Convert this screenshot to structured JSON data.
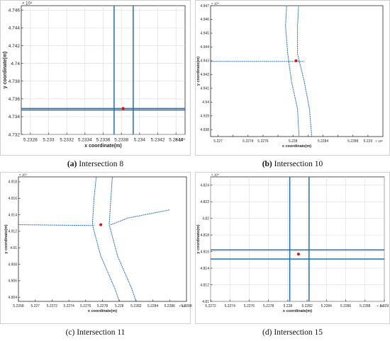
{
  "captions": [
    {
      "label": "(a)",
      "text": " Intersection 8"
    },
    {
      "label": "(b)",
      "text": " Intersection 10"
    },
    {
      "label": "(c)",
      "text": " Intersection 11"
    },
    {
      "label": "(d)",
      "text": " Intersection 15"
    }
  ],
  "colors": {
    "road": "#1f6fb4",
    "road_light": "#4a90d0",
    "intersection": "#e01010"
  },
  "chart_data": [
    {
      "type": "scatter",
      "title": "",
      "xlabel": "x coordinate(m)",
      "ylabel": "y coordinate(m)",
      "x_exponent": "× 10⁵",
      "y_exponent": "× 10⁴",
      "xlim": [
        5.2327,
        5.2345
      ],
      "ylim": [
        4.732,
        4.7465
      ],
      "xticks": [
        5.2328,
        5.233,
        5.2332,
        5.2334,
        5.2336,
        5.2338,
        5.234,
        5.2342,
        5.2344
      ],
      "yticks": [
        4.732,
        4.734,
        4.736,
        4.738,
        4.74,
        4.742,
        4.744,
        4.746
      ],
      "xtick_labels": [
        "5.2328",
        "5.233",
        "5.2332",
        "5.2334",
        "5.2336",
        "5.2338",
        "5.234",
        "5.2342",
        "5.2344"
      ],
      "ytick_labels": [
        "4.732",
        "4.734",
        "4.736",
        "4.738",
        "4.74",
        "4.742",
        "4.744",
        "4.746"
      ],
      "grid": true,
      "roads": [
        [
          [
            5.2327,
            4.73475
          ],
          [
            5.2345,
            4.73475
          ]
        ],
        [
          [
            5.2327,
            4.73492
          ],
          [
            5.2345,
            4.73492
          ]
        ],
        [
          [
            5.23372,
            4.732
          ],
          [
            5.23372,
            4.7465
          ]
        ],
        [
          [
            5.23393,
            4.732
          ],
          [
            5.23393,
            4.7465
          ]
        ]
      ],
      "intersection": [
        5.23382,
        4.73493
      ]
    },
    {
      "type": "scatter",
      "title": "",
      "xlabel": "x coordinate(m)",
      "ylabel": "y coordinate(m)",
      "x_exponent": "× 10⁵",
      "y_exponent": "× 10⁴",
      "xlim": [
        5.2269,
        5.2292
      ],
      "ylim": [
        4.9375,
        4.947
      ],
      "xticks": [
        5.227,
        5.2272,
        5.2274,
        5.2276,
        5.2278,
        5.228,
        5.2282,
        5.2284,
        5.2286,
        5.2288,
        5.229
      ],
      "yticks": [
        4.938,
        4.939,
        4.94,
        4.941,
        4.942,
        4.943,
        4.944,
        4.945,
        4.946,
        4.947
      ],
      "xtick_labels": [
        "5.227",
        "",
        "5.2274",
        "5.2276",
        "",
        "5.228",
        "",
        "5.2284",
        "",
        "5.2288",
        "5.229"
      ],
      "ytick_labels": [
        "4.938",
        "4.939",
        "4.94",
        "4.941",
        "4.942",
        "4.943",
        "4.944",
        "4.945",
        "4.946",
        "4.947"
      ],
      "grid": false,
      "roads": [
        [
          [
            5.2269,
            4.94295
          ],
          [
            5.22815,
            4.94295
          ]
        ],
        [
          [
            5.22792,
            4.9475
          ],
          [
            5.2279,
            4.9455
          ],
          [
            5.22793,
            4.9435
          ],
          [
            5.22798,
            4.9415
          ],
          [
            5.22806,
            4.9395
          ],
          [
            5.22808,
            4.9375
          ]
        ],
        [
          [
            5.22808,
            4.9475
          ],
          [
            5.22806,
            4.9455
          ],
          [
            5.22806,
            4.9435
          ],
          [
            5.22815,
            4.9415
          ],
          [
            5.22822,
            4.9395
          ],
          [
            5.22825,
            4.9375
          ]
        ]
      ],
      "intersection": [
        5.22804,
        4.943
      ]
    },
    {
      "type": "scatter",
      "title": "",
      "xlabel": "x coordinate(m)",
      "ylabel": "y coordinate(m)",
      "x_exponent": "× 10⁵",
      "y_exponent": "× 10⁴",
      "xlim": [
        5.2268,
        5.2288
      ],
      "ylim": [
        4.9035,
        4.9186
      ],
      "xticks": [
        5.2268,
        5.227,
        5.2272,
        5.2274,
        5.2276,
        5.2278,
        5.228,
        5.2282,
        5.2284,
        5.2286,
        5.2288
      ],
      "yticks": [
        4.904,
        4.906,
        4.908,
        4.91,
        4.912,
        4.914,
        4.916,
        4.918
      ],
      "xtick_labels": [
        "5.2268",
        "5.227",
        "5.2272",
        "5.2274",
        "5.2276",
        "5.2278",
        "5.228",
        "5.2282",
        "5.2284",
        "5.2286",
        "5.2288"
      ],
      "ytick_labels": [
        "4.904",
        "4.906",
        "4.908",
        "4.91",
        "4.912",
        "4.914",
        "4.916",
        "4.918"
      ],
      "grid": false,
      "roads": [
        [
          [
            5.2268,
            4.9128
          ],
          [
            5.2277,
            4.9127
          ]
        ],
        [
          [
            5.22773,
            4.919
          ],
          [
            5.2277,
            4.916
          ],
          [
            5.22768,
            4.9128
          ],
          [
            5.22778,
            4.909
          ],
          [
            5.22795,
            4.905
          ],
          [
            5.228,
            4.9035
          ]
        ],
        [
          [
            5.22792,
            4.919
          ],
          [
            5.2279,
            4.916
          ],
          [
            5.22788,
            4.9128
          ],
          [
            5.22798,
            4.909
          ],
          [
            5.22815,
            4.905
          ],
          [
            5.2282,
            4.9035
          ]
        ],
        [
          [
            5.2279,
            4.9128
          ],
          [
            5.228,
            4.9132
          ],
          [
            5.2281,
            4.9136
          ],
          [
            5.2284,
            4.9142
          ],
          [
            5.2286,
            4.9146
          ]
        ]
      ],
      "intersection": [
        5.22778,
        4.9128
      ]
    },
    {
      "type": "scatter",
      "title": "",
      "xlabel": "x coordinate(m)",
      "ylabel": "y coordinate(m)",
      "x_exponent": "× 10⁵",
      "y_exponent": "× 10⁴",
      "xlim": [
        5.2272,
        5.229
      ],
      "ylim": [
        4.81,
        4.825
      ],
      "xticks": [
        5.2272,
        5.2274,
        5.2276,
        5.2278,
        5.228,
        5.2282,
        5.2284,
        5.2286,
        5.2288,
        5.229
      ],
      "yticks": [
        4.81,
        4.812,
        4.814,
        4.816,
        4.818,
        4.82,
        4.822,
        4.824
      ],
      "xtick_labels": [
        "5.2272",
        "5.2274",
        "5.2276",
        "5.2278",
        "5.228",
        "5.2282",
        "5.2284",
        "5.2286",
        "5.2288",
        "5.229"
      ],
      "ytick_labels": [
        "4.81",
        "4.812",
        "4.814",
        "4.816",
        "4.818",
        "4.82",
        "4.822",
        "4.824"
      ],
      "grid": true,
      "roads": [
        [
          [
            5.2272,
            4.8162
          ],
          [
            5.229,
            4.8162
          ]
        ],
        [
          [
            5.2272,
            4.8151
          ],
          [
            5.229,
            4.8151
          ]
        ],
        [
          [
            5.22802,
            4.81
          ],
          [
            5.22802,
            4.825
          ]
        ],
        [
          [
            5.22822,
            4.81
          ],
          [
            5.22822,
            4.825
          ]
        ]
      ],
      "intersection": [
        5.22811,
        4.8157
      ]
    }
  ]
}
